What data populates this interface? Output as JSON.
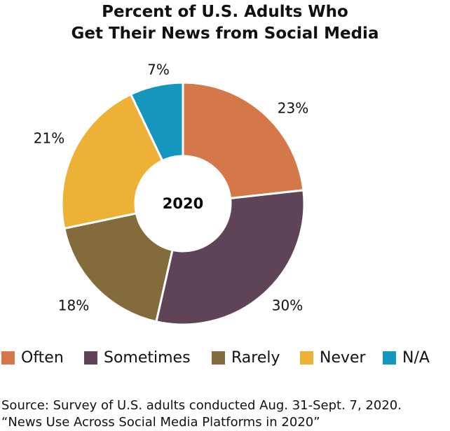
{
  "chart_data": {
    "type": "pie",
    "variant": "donut",
    "title_lines": [
      "Percent of U.S. Adults Who",
      "Get Their News from Social Media"
    ],
    "center_label": "2020",
    "categories": [
      "Often",
      "Sometimes",
      "Rarely",
      "Never",
      "N/A"
    ],
    "values": [
      23,
      30,
      18,
      21,
      7
    ],
    "data_labels": [
      "23%",
      "30%",
      "18%",
      "21%",
      "7%"
    ],
    "colors": [
      "#D4784A",
      "#5F4356",
      "#836B3C",
      "#EDB235",
      "#1596BE"
    ],
    "legend_position": "bottom"
  },
  "source_lines": [
    "Source: Survey of U.S. adults conducted Aug. 31-Sept. 7, 2020.",
    "“News Use Across Social Media Platforms in 2020”"
  ]
}
